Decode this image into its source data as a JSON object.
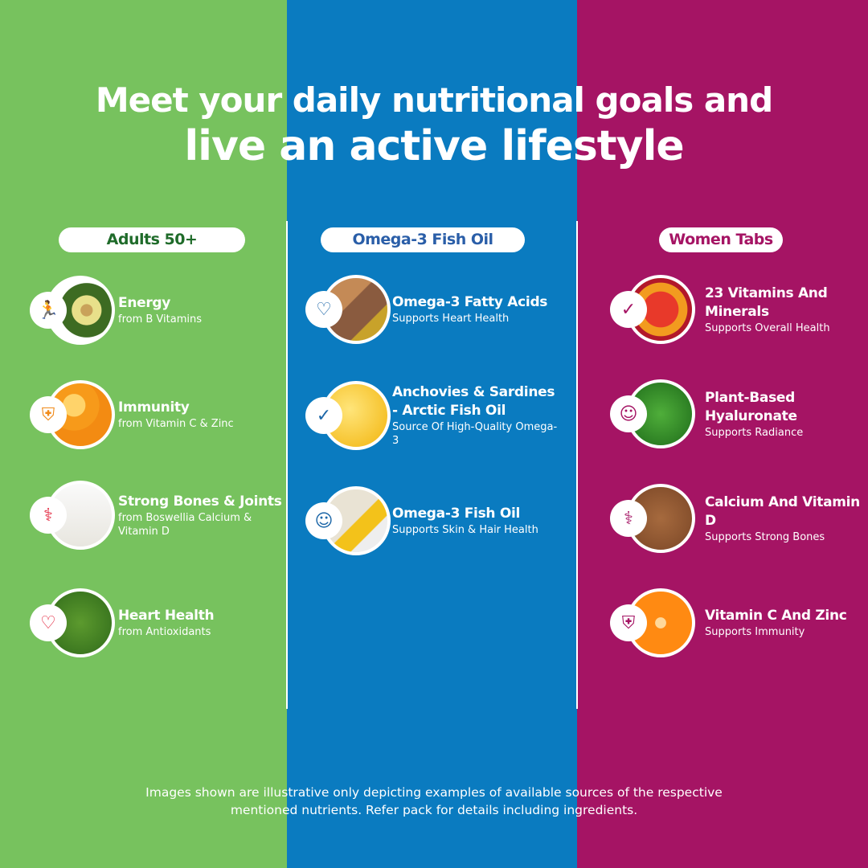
{
  "headline": {
    "line1": "Meet your daily nutritional goals and",
    "line2": "live an active lifestyle"
  },
  "colors": {
    "green": "#77c25e",
    "blue": "#0a7bc0",
    "magenta": "#a51464"
  },
  "columns": [
    {
      "label": "Adults 50+",
      "label_color": "#1f6b2a",
      "items": [
        {
          "title": "Energy",
          "subtitle": "from B Vitamins",
          "icon": "running-person-icon",
          "image": "avocado"
        },
        {
          "title": "Immunity",
          "subtitle": "from Vitamin C & Zinc",
          "icon": "shield-icon",
          "image": "oranges"
        },
        {
          "title": "Strong Bones & Joints",
          "subtitle": "from Boswellia Calcium & Vitamin D",
          "icon": "joint-bone-icon",
          "image": "milk"
        },
        {
          "title": "Heart Health",
          "subtitle": "from Antioxidants",
          "icon": "heart-icon",
          "image": "spinach"
        }
      ]
    },
    {
      "label": "Omega-3 Fish Oil",
      "label_color": "#2a5ea8",
      "items": [
        {
          "title": "Omega-3 Fatty Acids",
          "subtitle": "Supports Heart Health",
          "icon": "heart-icon",
          "image": "nuts-seeds-oil"
        },
        {
          "title": "Anchovies & Sardines - Arctic Fish Oil",
          "subtitle": "Source Of High-Quality Omega-3",
          "icon": "checkmark-person-icon",
          "image": "fish-oil-capsules"
        },
        {
          "title": "Omega-3 Fish Oil",
          "subtitle": "Supports Skin & Hair Health",
          "icon": "woman-face-icon",
          "image": "nuts-oil"
        }
      ]
    },
    {
      "label": "Women Tabs",
      "label_color": "#a51464",
      "items": [
        {
          "title": "23 Vitamins And Minerals",
          "subtitle": "Supports Overall Health",
          "icon": "checkmark-person-icon",
          "image": "fruits"
        },
        {
          "title": "Plant-Based Hyaluronate",
          "subtitle": "Supports Radiance",
          "icon": "woman-face-icon",
          "image": "green-leaf"
        },
        {
          "title": "Calcium And Vitamin D",
          "subtitle": "Supports Strong Bones",
          "icon": "joint-bone-icon",
          "image": "almonds"
        },
        {
          "title": "Vitamin C And Zinc",
          "subtitle": "Supports Immunity",
          "icon": "shield-icon",
          "image": "orange-slice"
        }
      ]
    }
  ],
  "disclaimer": {
    "line1": "Images shown are illustrative only depicting examples of available sources of the respective",
    "line2": "mentioned nutrients. Refer pack for details including ingredients."
  }
}
